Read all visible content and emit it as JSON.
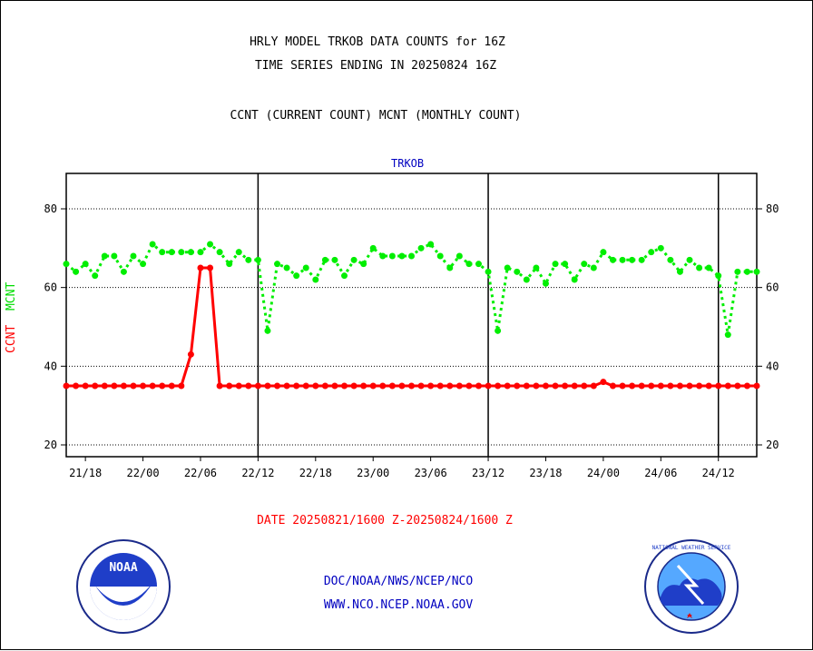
{
  "header": {
    "title_line1": "HRLY MODEL TRKOB DATA COUNTS for 16Z",
    "title_line2": "TIME SERIES ENDING IN 20250824 16Z",
    "subtitle": "CCNT (CURRENT COUNT) MCNT (MONTHLY COUNT)",
    "panel_label": "TRKOB"
  },
  "ylabel": {
    "ccnt": "CCNT",
    "mcnt": "MCNT"
  },
  "footer": {
    "date_range": "DATE 20250821/1600 Z-20250824/1600 Z",
    "org_path": "DOC/NOAA/NWS/NCEP/NCO",
    "website": "WWW.NCO.NCEP.NOAA.GOV"
  },
  "logos": {
    "left": "NOAA",
    "right": "NATIONAL WEATHER SERVICE"
  },
  "colors": {
    "ccnt": "#ff0000",
    "mcnt": "#00ee00",
    "title_blue": "#0000c0"
  },
  "chart_data": {
    "type": "line",
    "x_start": "20250821/1600 Z",
    "x_end": "20250824/1600 Z",
    "xlim": [
      0,
      72
    ],
    "ylim": [
      17,
      89
    ],
    "yticks": [
      20,
      40,
      60,
      80
    ],
    "xticks": [
      {
        "hour": 2,
        "label": "21/18"
      },
      {
        "hour": 8,
        "label": "22/00"
      },
      {
        "hour": 14,
        "label": "22/06"
      },
      {
        "hour": 20,
        "label": "22/12"
      },
      {
        "hour": 26,
        "label": "22/18"
      },
      {
        "hour": 32,
        "label": "23/00"
      },
      {
        "hour": 38,
        "label": "23/06"
      },
      {
        "hour": 44,
        "label": "23/12"
      },
      {
        "hour": 50,
        "label": "23/18"
      },
      {
        "hour": 56,
        "label": "24/00"
      },
      {
        "hour": 62,
        "label": "24/06"
      },
      {
        "hour": 68,
        "label": "24/12"
      }
    ],
    "day_boundaries": [
      20,
      44,
      68
    ],
    "grid": "horizontal dotted",
    "series": [
      {
        "name": "CCNT",
        "color": "#ff0000",
        "style": "solid",
        "values": [
          35,
          35,
          35,
          35,
          35,
          35,
          35,
          35,
          35,
          35,
          35,
          35,
          35,
          43,
          65,
          65,
          35,
          35,
          35,
          35,
          35,
          35,
          35,
          35,
          35,
          35,
          35,
          35,
          35,
          35,
          35,
          35,
          35,
          35,
          35,
          35,
          35,
          35,
          35,
          35,
          35,
          35,
          35,
          35,
          35,
          35,
          35,
          35,
          35,
          35,
          35,
          35,
          35,
          35,
          35,
          35,
          36,
          35,
          35,
          35,
          35,
          35,
          35,
          35,
          35,
          35,
          35,
          35,
          35,
          35,
          35,
          35,
          35
        ]
      },
      {
        "name": "MCNT",
        "color": "#00ee00",
        "style": "dotted",
        "values": [
          66,
          64,
          66,
          63,
          68,
          68,
          64,
          68,
          66,
          71,
          69,
          69,
          69,
          69,
          69,
          71,
          69,
          66,
          69,
          67,
          67,
          49,
          66,
          65,
          63,
          65,
          62,
          67,
          67,
          63,
          67,
          66,
          70,
          68,
          68,
          68,
          68,
          70,
          71,
          68,
          65,
          68,
          66,
          66,
          64,
          49,
          65,
          64,
          62,
          65,
          61,
          66,
          66,
          62,
          66,
          65,
          69,
          67,
          67,
          67,
          67,
          69,
          70,
          67,
          64,
          67,
          65,
          65,
          63,
          48,
          64,
          64,
          64
        ]
      }
    ]
  }
}
